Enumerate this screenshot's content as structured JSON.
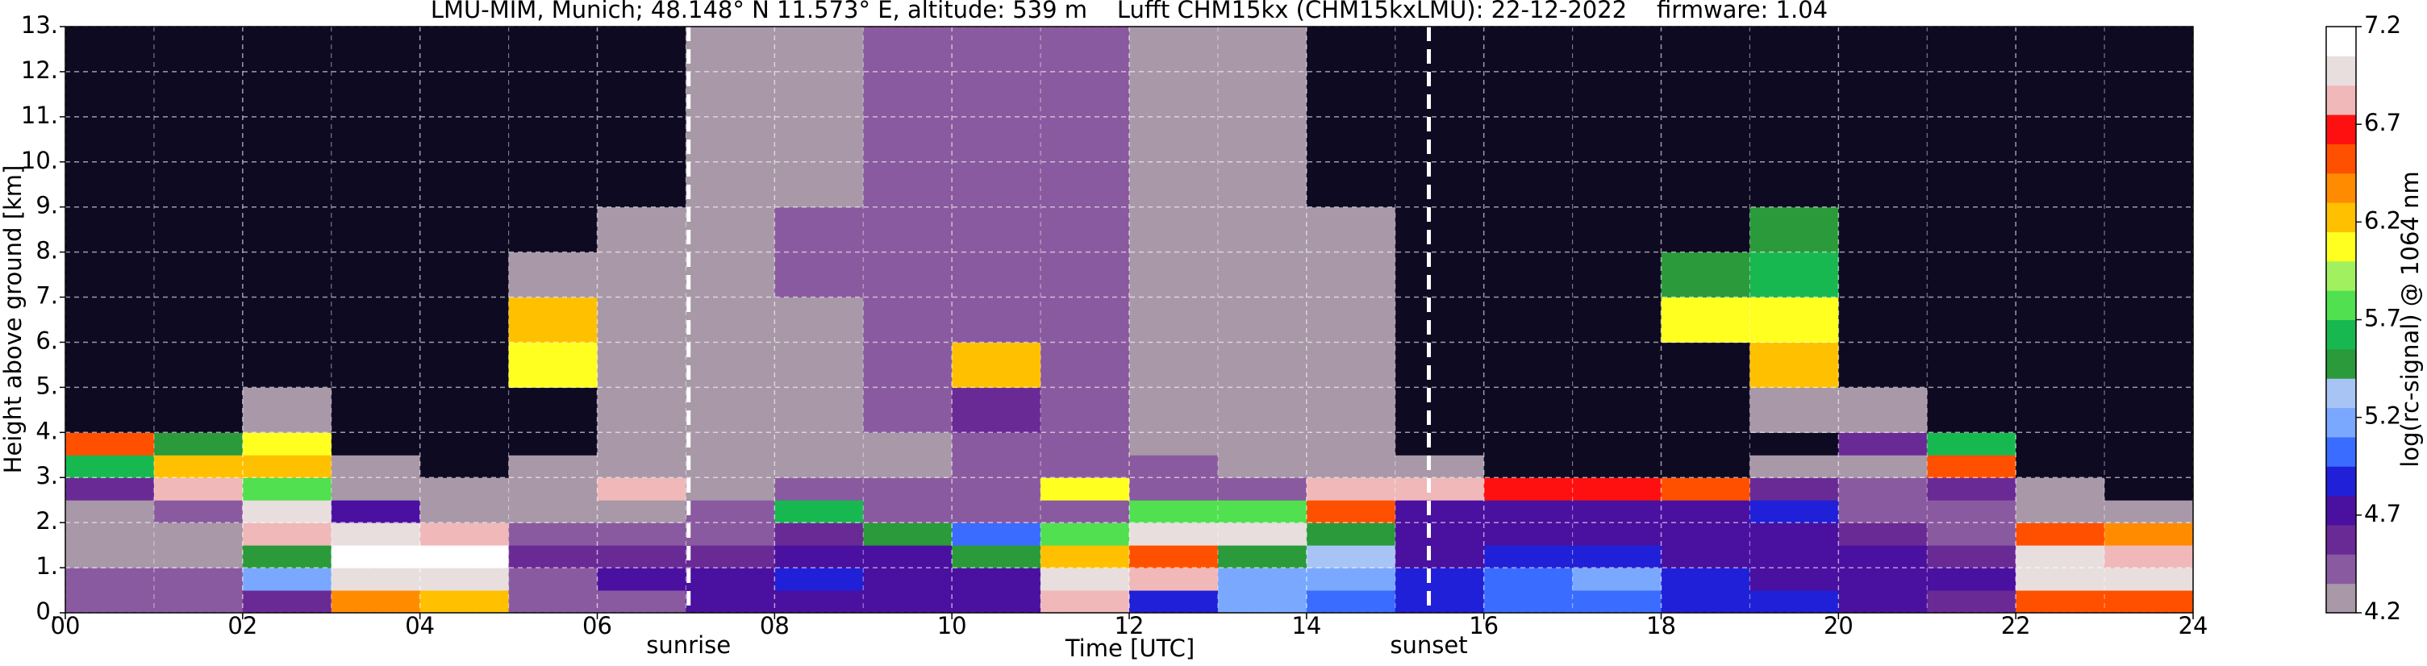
{
  "chart_data": {
    "type": "heatmap",
    "title": "LMU-MIM, Munich; 48.148° N 11.573° E, altitude: 539 m    Lufft CHM15kx (CHM15kxLMU): 22-12-2022    firmware: 1.04",
    "xlabel": "Time [UTC]",
    "ylabel": "Height above ground [km]",
    "colorbar_label": "log(rc-signal) @ 1064 nm",
    "xlim": [
      0,
      24
    ],
    "ylim": [
      0,
      13
    ],
    "xticks": [
      {
        "value": 0,
        "label": "00"
      },
      {
        "value": 2,
        "label": "02"
      },
      {
        "value": 4,
        "label": "04"
      },
      {
        "value": 6,
        "label": "06"
      },
      {
        "value": 8,
        "label": "08"
      },
      {
        "value": 10,
        "label": "10"
      },
      {
        "value": 12,
        "label": "12"
      },
      {
        "value": 14,
        "label": "14"
      },
      {
        "value": 16,
        "label": "16"
      },
      {
        "value": 18,
        "label": "18"
      },
      {
        "value": 20,
        "label": "20"
      },
      {
        "value": 22,
        "label": "22"
      },
      {
        "value": 24,
        "label": "24"
      }
    ],
    "xminorticks": [
      1,
      3,
      5,
      7,
      9,
      11,
      13,
      15,
      17,
      19,
      21,
      23
    ],
    "yticks": [
      {
        "value": 0,
        "label": "0."
      },
      {
        "value": 1,
        "label": "1."
      },
      {
        "value": 2,
        "label": "2."
      },
      {
        "value": 3,
        "label": "3."
      },
      {
        "value": 4,
        "label": "4."
      },
      {
        "value": 5,
        "label": "5."
      },
      {
        "value": 6,
        "label": "6."
      },
      {
        "value": 7,
        "label": "7."
      },
      {
        "value": 8,
        "label": "8."
      },
      {
        "value": 9,
        "label": "9."
      },
      {
        "value": 10,
        "label": "10."
      },
      {
        "value": 11,
        "label": "11."
      },
      {
        "value": 12,
        "label": "12."
      },
      {
        "value": 13,
        "label": "13."
      }
    ],
    "grid": true,
    "zlim": [
      4.2,
      7.2
    ],
    "zticks": [
      4.2,
      4.7,
      5.2,
      5.7,
      6.2,
      6.7,
      7.2
    ],
    "colormap": [
      "#a898a8",
      "#8a5aa0",
      "#6a2a96",
      "#4a10a0",
      "#2020d8",
      "#3a6cff",
      "#7aa8ff",
      "#a8c4f4",
      "#2a9a3a",
      "#18b850",
      "#50e050",
      "#a0f060",
      "#ffff20",
      "#ffc000",
      "#ff8c00",
      "#ff5000",
      "#ff1010",
      "#f0b8b8",
      "#e8dede",
      "#ffffff"
    ],
    "under_color": "#0e0a22",
    "annotations": [
      {
        "text": "sunrise",
        "x": 7.03
      },
      {
        "text": "sunset",
        "x": 15.38
      }
    ],
    "x_bins": [
      0,
      1,
      2,
      3,
      4,
      5,
      6,
      7,
      8,
      9,
      10,
      11,
      12,
      13,
      14,
      15,
      16,
      17,
      18,
      19,
      20,
      21,
      22,
      23,
      24
    ],
    "y_bins": [
      0,
      0.5,
      1,
      1.5,
      2,
      2.5,
      3,
      3.5,
      4,
      5,
      6,
      7,
      8,
      9,
      13
    ],
    "values": [
      [
        4.5,
        4.4,
        4.3,
        4.3,
        4.3,
        4.6,
        5.6,
        6.5,
        4.0,
        4.0,
        4.0,
        4.0,
        4.0,
        4.0
      ],
      [
        4.5,
        4.4,
        4.3,
        4.3,
        4.4,
        6.8,
        6.2,
        5.4,
        4.1,
        4.0,
        4.0,
        4.0,
        4.0,
        4.0
      ],
      [
        4.6,
        5.2,
        5.5,
        6.8,
        7.0,
        5.8,
        6.2,
        6.0,
        4.2,
        4.0,
        4.0,
        4.0,
        4.0,
        4.0
      ],
      [
        6.4,
        7.0,
        7.1,
        6.9,
        4.8,
        4.3,
        4.2,
        4.0,
        4.0,
        4.0,
        4.0,
        4.0,
        4.0,
        4.0
      ],
      [
        6.3,
        7.0,
        7.1,
        6.8,
        4.3,
        4.2,
        4.0,
        4.0,
        4.0,
        4.0,
        4.0,
        4.0,
        4.0,
        4.0
      ],
      [
        4.5,
        4.5,
        4.6,
        4.4,
        4.3,
        4.3,
        4.2,
        4.1,
        4.1,
        6.0,
        6.2,
        4.3,
        4.1,
        4.0
      ],
      [
        4.5,
        4.7,
        4.6,
        4.4,
        4.3,
        6.8,
        4.2,
        4.2,
        4.2,
        4.3,
        4.3,
        4.2,
        4.2,
        4.1
      ],
      [
        4.8,
        4.8,
        4.6,
        4.4,
        4.4,
        4.3,
        4.3,
        4.3,
        4.3,
        4.3,
        4.3,
        4.3,
        4.3,
        4.3
      ],
      [
        4.8,
        4.9,
        4.8,
        4.6,
        5.6,
        4.4,
        4.3,
        4.3,
        4.3,
        4.3,
        4.3,
        4.4,
        4.4,
        4.3
      ],
      [
        4.7,
        4.8,
        4.8,
        5.5,
        4.5,
        4.4,
        4.3,
        4.3,
        4.4,
        4.4,
        4.4,
        4.4,
        4.4,
        4.4
      ],
      [
        4.8,
        4.8,
        5.4,
        5.0,
        4.5,
        4.4,
        4.4,
        4.4,
        4.6,
        6.2,
        4.4,
        4.4,
        4.4,
        4.4
      ],
      [
        6.8,
        6.9,
        6.2,
        5.8,
        4.5,
        6.0,
        4.4,
        4.4,
        4.4,
        4.4,
        4.4,
        4.4,
        4.4,
        4.4
      ],
      [
        4.9,
        6.8,
        6.6,
        6.9,
        5.8,
        4.5,
        4.4,
        4.3,
        4.3,
        4.3,
        4.3,
        4.3,
        4.3,
        4.3
      ],
      [
        5.2,
        5.2,
        5.4,
        6.9,
        5.8,
        4.5,
        4.3,
        4.3,
        4.3,
        4.3,
        4.3,
        4.3,
        4.3,
        4.3
      ],
      [
        5.1,
        5.2,
        5.3,
        5.4,
        6.6,
        6.8,
        4.3,
        4.2,
        4.2,
        4.2,
        4.2,
        4.2,
        4.2,
        4.1
      ],
      [
        4.9,
        4.9,
        4.8,
        4.8,
        4.8,
        6.8,
        4.2,
        4.0,
        4.0,
        4.0,
        4.0,
        4.0,
        4.0,
        4.0
      ],
      [
        5.0,
        5.1,
        4.9,
        4.8,
        4.7,
        6.7,
        4.0,
        4.0,
        4.0,
        4.0,
        4.0,
        4.0,
        4.0,
        4.0
      ],
      [
        5.1,
        5.2,
        4.9,
        4.8,
        4.7,
        6.7,
        4.0,
        4.0,
        4.0,
        4.0,
        4.0,
        4.0,
        4.0,
        4.0
      ],
      [
        4.9,
        4.9,
        4.8,
        4.8,
        4.7,
        6.6,
        4.0,
        4.0,
        4.0,
        4.0,
        6.0,
        5.4,
        4.0,
        4.0
      ],
      [
        4.9,
        4.8,
        4.8,
        4.8,
        4.9,
        4.6,
        4.2,
        4.0,
        4.2,
        6.3,
        6.0,
        5.6,
        5.5,
        4.0
      ],
      [
        4.8,
        4.8,
        4.7,
        4.6,
        4.4,
        4.4,
        4.2,
        4.6,
        4.3,
        4.0,
        4.0,
        4.0,
        4.0,
        4.0
      ],
      [
        4.6,
        4.7,
        4.6,
        4.5,
        4.5,
        4.6,
        6.6,
        5.6,
        4.0,
        4.0,
        4.0,
        4.0,
        4.0,
        4.0
      ],
      [
        6.6,
        7.0,
        7.0,
        6.5,
        4.3,
        4.2,
        4.0,
        4.0,
        4.0,
        4.0,
        4.0,
        4.0,
        4.0,
        4.0
      ],
      [
        6.5,
        6.9,
        6.8,
        6.4,
        4.2,
        4.0,
        4.0,
        4.0,
        4.0,
        4.0,
        4.0,
        4.0,
        4.0,
        4.0
      ]
    ]
  }
}
